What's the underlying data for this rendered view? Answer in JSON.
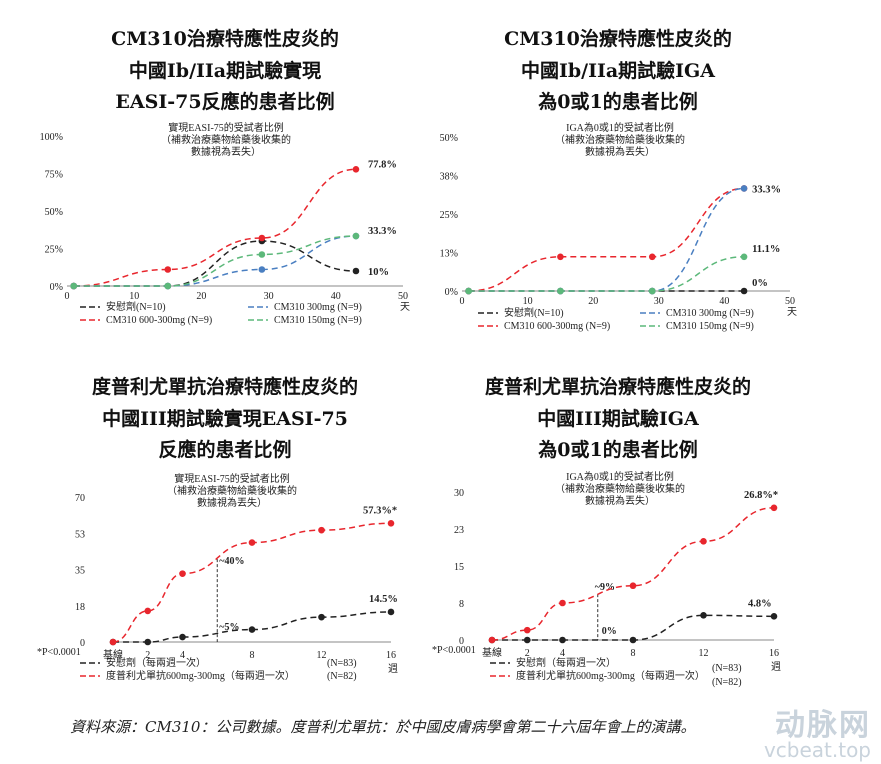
{
  "titles": [
    [
      "CM310治療特應性皮炎的",
      "中國Ib/IIa期試驗實現",
      "EASI-75反應的患者比例"
    ],
    [
      "CM310治療特應性皮炎的",
      "中國Ib/IIa期試驗IGA",
      "為0或1的患者比例"
    ],
    [
      "度普利尤單抗治療特應性皮炎的",
      "中國III期試驗實現EASI-75",
      "反應的患者比例"
    ],
    [
      "度普利尤單抗治療特應性皮炎的",
      "中國III期試驗IGA",
      "為0或1的患者比例"
    ]
  ],
  "source": "資料來源：CM310：公司數據。度普利尤單抗：於中國皮膚病學會第二十六屆年會上的演講。",
  "watermark": [
    "动脉网",
    "vcbeat.top"
  ],
  "colors": {
    "placebo": "#222222",
    "red": "#e8262d",
    "blue": "#4a7fc1",
    "green": "#5cb87a"
  },
  "chart_data": [
    {
      "type": "line",
      "subtitle": [
        "實現EASI-75的受試者比例",
        "（補救治療藥物給藥後收集的",
        "數據視為丟失）"
      ],
      "xlabel": "天",
      "xlim": [
        0,
        50
      ],
      "xticks": [
        "0",
        "10",
        "20",
        "30",
        "40",
        "50"
      ],
      "xtick_values": [
        0,
        10,
        20,
        30,
        40,
        50
      ],
      "ylim": [
        0,
        100
      ],
      "yticks": [
        "0%",
        "25%",
        "50%",
        "75%",
        "100%"
      ],
      "ytick_values": [
        0,
        25,
        50,
        75,
        100
      ],
      "series": [
        {
          "name": "安慰劑(N=10)",
          "color": "placebo",
          "x": [
            1,
            15,
            29,
            43
          ],
          "y": [
            0,
            0,
            30,
            10
          ],
          "end_label": "10%"
        },
        {
          "name": "CM310 600-300mg (N=9)",
          "color": "red",
          "x": [
            1,
            15,
            29,
            43
          ],
          "y": [
            0,
            11,
            32,
            77.8
          ],
          "end_label": "77.8%"
        },
        {
          "name": "CM310 300mg (N=9)",
          "color": "blue",
          "x": [
            1,
            15,
            29,
            43
          ],
          "y": [
            0,
            0,
            11,
            33.3
          ],
          "end_label": ""
        },
        {
          "name": "CM310 150mg (N=9)",
          "color": "green",
          "x": [
            1,
            15,
            29,
            43
          ],
          "y": [
            0,
            0,
            21,
            33.3
          ],
          "end_label": "33.3%"
        }
      ]
    },
    {
      "type": "line",
      "subtitle": [
        "IGA為0或1的受試者比例",
        "（補救治療藥物給藥後收集的",
        "數據視為丟失）"
      ],
      "xlabel": "天",
      "xlim": [
        0,
        50
      ],
      "xticks": [
        "0",
        "10",
        "20",
        "30",
        "40",
        "50"
      ],
      "xtick_values": [
        0,
        10,
        20,
        30,
        40,
        50
      ],
      "ylim": [
        0,
        50
      ],
      "yticks": [
        "0%",
        "13%",
        "25%",
        "38%",
        "50%"
      ],
      "ytick_values": [
        0,
        12.5,
        25,
        37.5,
        50
      ],
      "series": [
        {
          "name": "安慰劑(N=10)",
          "color": "placebo",
          "x": [
            1,
            15,
            29,
            43
          ],
          "y": [
            0,
            0,
            0,
            0
          ],
          "end_label": "0%"
        },
        {
          "name": "CM310 600-300mg (N=9)",
          "color": "red",
          "x": [
            1,
            15,
            29,
            43
          ],
          "y": [
            0,
            11.1,
            11.1,
            33.3
          ],
          "end_label": "33.3%"
        },
        {
          "name": "CM310 300mg (N=9)",
          "color": "blue",
          "x": [
            1,
            15,
            29,
            43
          ],
          "y": [
            0,
            0,
            0,
            33.3
          ],
          "end_label": ""
        },
        {
          "name": "CM310 150mg (N=9)",
          "color": "green",
          "x": [
            1,
            15,
            29,
            43
          ],
          "y": [
            0,
            0,
            0,
            11.1
          ],
          "end_label": "11.1%"
        }
      ]
    },
    {
      "type": "line",
      "subtitle": [
        "實現EASI-75的受試者比例",
        "（補救治療藥物給藥後收集的",
        "數據視為丟失）"
      ],
      "xlabel": "週",
      "xlim": [
        0,
        16
      ],
      "xticks": [
        "基線",
        "2",
        "4",
        "8",
        "12",
        "16"
      ],
      "xtick_values": [
        0,
        2,
        4,
        8,
        12,
        16
      ],
      "ylim": [
        0,
        70
      ],
      "yticks": [
        "0",
        "18",
        "35",
        "53",
        "70"
      ],
      "ytick_values": [
        0,
        17.5,
        35,
        52.5,
        70
      ],
      "footnote": "*P<0.0001",
      "series": [
        {
          "name": "安慰劑（每兩週一次）",
          "n": "(N=83)",
          "color": "placebo",
          "x": [
            0,
            2,
            4,
            8,
            12,
            16
          ],
          "y": [
            0,
            0,
            2.4,
            6,
            12,
            14.5
          ],
          "end_label": "14.5%"
        },
        {
          "name": "度普利尤單抗600mg-300mg（每兩週一次）",
          "n": "(N=82)",
          "color": "red",
          "x": [
            0,
            2,
            4,
            8,
            12,
            16
          ],
          "y": [
            0,
            15,
            33,
            48,
            54,
            57.3
          ],
          "end_label": "57.3%*"
        }
      ],
      "annotation": {
        "x": 6,
        "labels": [
          "~40%",
          "~5%"
        ],
        "values": [
          40,
          5
        ]
      }
    },
    {
      "type": "line",
      "subtitle": [
        "IGA為0或1的受試者比例",
        "（補救治療藥物給藥後收集的",
        "數據視為丟失）"
      ],
      "xlabel": "週",
      "xlim": [
        0,
        16
      ],
      "xticks": [
        "基線",
        "2",
        "4",
        "8",
        "12",
        "16"
      ],
      "xtick_values": [
        0,
        2,
        4,
        8,
        12,
        16
      ],
      "ylim": [
        0,
        30
      ],
      "yticks": [
        "0",
        "8",
        "15",
        "23",
        "30"
      ],
      "ytick_values": [
        0,
        7.5,
        15,
        22.5,
        30
      ],
      "footnote": "*P<0.0001",
      "series": [
        {
          "name": "安慰劑（每兩週一次）",
          "n": "(N=83)",
          "color": "placebo",
          "x": [
            0,
            2,
            4,
            8,
            12,
            16
          ],
          "y": [
            0,
            0,
            0,
            0,
            5,
            4.8
          ],
          "end_label": "4.8%"
        },
        {
          "name": "度普利尤單抗600mg-300mg（每兩週一次）",
          "n": "(N=82)",
          "color": "red",
          "x": [
            0,
            2,
            4,
            8,
            12,
            16
          ],
          "y": [
            0,
            2,
            7.5,
            11,
            20,
            26.8
          ],
          "end_label": "26.8%*"
        }
      ],
      "annotation": {
        "x": 6,
        "labels": [
          "~9%",
          "0%"
        ],
        "values": [
          9.3,
          0
        ]
      }
    }
  ]
}
